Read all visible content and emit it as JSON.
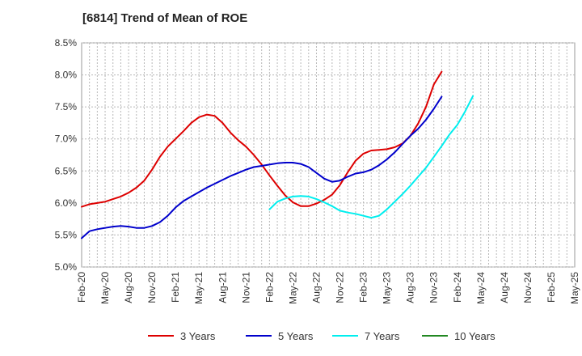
{
  "chart_data": {
    "type": "line",
    "title": "[6814]  Trend of Mean of ROE",
    "xlabel": "",
    "ylabel": "",
    "ylim": [
      5.0,
      8.5
    ],
    "y_ticks": [
      "5.0%",
      "5.5%",
      "6.0%",
      "6.5%",
      "7.0%",
      "7.5%",
      "8.0%",
      "8.5%"
    ],
    "x_ticks": [
      "Feb-20",
      "May-20",
      "Aug-20",
      "Nov-20",
      "Feb-21",
      "May-21",
      "Aug-21",
      "Nov-21",
      "Feb-22",
      "May-22",
      "Aug-22",
      "Nov-22",
      "Feb-23",
      "May-23",
      "Aug-23",
      "Nov-23",
      "Feb-24",
      "May-24",
      "Aug-24",
      "Nov-24",
      "Feb-25",
      "May-25"
    ],
    "grid": true,
    "legend_position": "bottom",
    "series": [
      {
        "name": "3 Years",
        "color": "#dd0000",
        "start_index": 0,
        "values": [
          5.94,
          5.98,
          6.0,
          6.02,
          6.06,
          6.1,
          6.16,
          6.24,
          6.35,
          6.52,
          6.72,
          6.88,
          7.0,
          7.12,
          7.25,
          7.34,
          7.38,
          7.36,
          7.25,
          7.1,
          6.98,
          6.88,
          6.75,
          6.6,
          6.43,
          6.27,
          6.12,
          6.01,
          5.95,
          5.95,
          5.99,
          6.05,
          6.13,
          6.28,
          6.48,
          6.66,
          6.77,
          6.82,
          6.83,
          6.84,
          6.87,
          6.93,
          7.05,
          7.24,
          7.5,
          7.85,
          8.05
        ]
      },
      {
        "name": "5 Years",
        "color": "#0000cc",
        "start_index": 0,
        "values": [
          5.45,
          5.56,
          5.59,
          5.61,
          5.63,
          5.64,
          5.63,
          5.61,
          5.61,
          5.64,
          5.7,
          5.8,
          5.93,
          6.03,
          6.1,
          6.17,
          6.24,
          6.3,
          6.36,
          6.42,
          6.47,
          6.52,
          6.56,
          6.58,
          6.6,
          6.62,
          6.63,
          6.63,
          6.61,
          6.56,
          6.47,
          6.38,
          6.33,
          6.35,
          6.41,
          6.46,
          6.48,
          6.52,
          6.59,
          6.68,
          6.79,
          6.92,
          7.05,
          7.16,
          7.3,
          7.47,
          7.66
        ]
      },
      {
        "name": "7 Years",
        "color": "#00eeee",
        "start_index": 24,
        "values": [
          5.9,
          6.02,
          6.07,
          6.1,
          6.11,
          6.1,
          6.06,
          6.01,
          5.95,
          5.88,
          5.85,
          5.83,
          5.8,
          5.77,
          5.8,
          5.9,
          6.02,
          6.14,
          6.27,
          6.41,
          6.55,
          6.72,
          6.89,
          7.07,
          7.22,
          7.43,
          7.67
        ]
      },
      {
        "name": "10 Years",
        "color": "#228822",
        "start_index": 0,
        "values": []
      }
    ]
  }
}
